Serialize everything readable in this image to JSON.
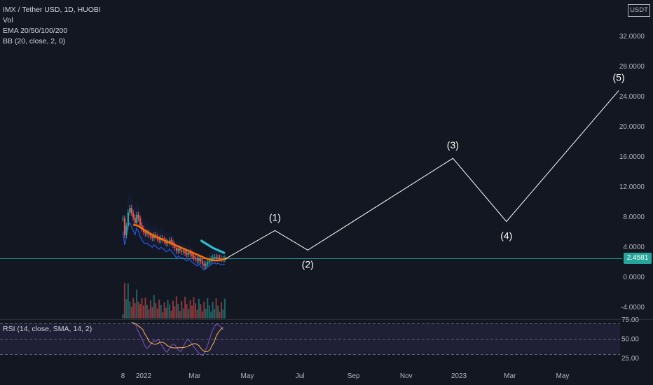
{
  "legend": {
    "symbol": "IMX / Tether USD, 1D, HUOBI",
    "vol": "Vol",
    "ema": "EMA 20/50/100/200",
    "bb": "BB (20, close, 2, 0)"
  },
  "rsi_legend": "RSI (14, close, SMA, 14, 2)",
  "currency": "USDT",
  "last_price": "2.4581",
  "colors": {
    "background": "#131722",
    "wave_line": "#ffffff",
    "price_tag": "#26a69a",
    "rsi_band": "#7e57c2",
    "candle_up": "#26a69a",
    "candle_down": "#ef5350",
    "ema_orange": "#ff6d00",
    "ema_teal": "#26c6da"
  },
  "chart_data": {
    "type": "line",
    "price_axis": {
      "ticks": [
        -4,
        0,
        4,
        8,
        12,
        16,
        20,
        24,
        28,
        32
      ],
      "tick_labels": [
        "-4.0000",
        "0.0000",
        "4.0000",
        "8.0000",
        "12.0000",
        "16.0000",
        "20.0000",
        "24.0000",
        "28.0000",
        "32.0000"
      ],
      "range": [
        -5,
        36
      ]
    },
    "rsi_axis": {
      "ticks": [
        25,
        50,
        75
      ],
      "tick_labels": [
        "25.00",
        "50.00",
        "75.00"
      ],
      "band": [
        30,
        70
      ]
    },
    "time_axis": {
      "labels": [
        "8",
        "2022",
        "Mar",
        "May",
        "Jul",
        "Sep",
        "Nov",
        "2023",
        "Mar",
        "May"
      ],
      "dates": [
        "2021-12-08",
        "2022-01-01",
        "2022-03-01",
        "2022-05-01",
        "2022-07-01",
        "2022-09-01",
        "2022-11-01",
        "2023-01-01",
        "2023-03-01",
        "2023-05-01"
      ]
    },
    "wave_projection": {
      "points": [
        {
          "label": "",
          "date": "2022-04-05",
          "value": 2.4
        },
        {
          "label": "(1)",
          "date": "2022-06-02",
          "value": 6.2
        },
        {
          "label": "(2)",
          "date": "2022-07-10",
          "value": 3.6
        },
        {
          "label": "(3)",
          "date": "2022-12-25",
          "value": 15.8
        },
        {
          "label": "(4)",
          "date": "2023-02-25",
          "value": 7.4
        },
        {
          "label": "(5)",
          "date": "2023-07-05",
          "value": 24.8
        }
      ]
    },
    "price_history": {
      "dates_start": "2021-12-08",
      "close": [
        7.8,
        5.6,
        6.8,
        8.6,
        9.2,
        8.5,
        7.9,
        7.2,
        8.3,
        7.8,
        6.9,
        6.4,
        6.0,
        5.8,
        5.9,
        5.6,
        5.4,
        5.2,
        5.6,
        5.4,
        5.1,
        4.9,
        5.2,
        5.0,
        4.8,
        4.5,
        4.6,
        4.9,
        4.6,
        4.3,
        3.9,
        3.5,
        3.8,
        3.6,
        3.4,
        3.5,
        3.2,
        3.0,
        3.3,
        3.1,
        2.8,
        2.6,
        2.4,
        2.2,
        2.5,
        2.1,
        1.8,
        1.5,
        1.7,
        2.0,
        2.2,
        2.4,
        2.6,
        2.7,
        2.5,
        2.6,
        2.5,
        2.4,
        2.4,
        2.5
      ]
    },
    "ema_teal": [
      {
        "date": "2022-03-08",
        "value": 4.9
      },
      {
        "date": "2022-03-22",
        "value": 3.9
      },
      {
        "date": "2022-04-05",
        "value": 3.2
      }
    ],
    "ema_orange": [
      7.0,
      6.8,
      6.3,
      5.9,
      5.5,
      5.2,
      4.9,
      4.6,
      4.3,
      4.0,
      3.7,
      3.4,
      3.1,
      2.8,
      2.5,
      2.3,
      2.2,
      2.3,
      2.5
    ],
    "rsi": [
      72,
      70,
      68,
      62,
      55,
      48,
      42,
      38,
      40,
      45,
      48,
      47,
      50,
      46,
      40,
      35,
      33,
      38,
      42,
      44,
      40,
      36,
      34,
      38,
      45,
      50,
      48,
      44,
      40,
      36,
      32,
      30,
      29,
      34,
      42,
      52,
      60,
      66,
      70,
      68,
      65,
      62
    ]
  }
}
